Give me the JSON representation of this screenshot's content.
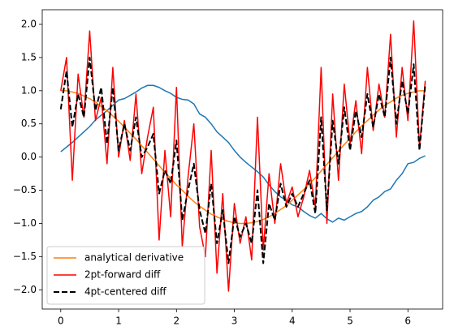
{
  "chart_data": {
    "type": "line",
    "x": [
      0,
      0.1,
      0.2,
      0.3,
      0.4,
      0.5,
      0.6,
      0.7,
      0.8,
      0.9,
      1.0,
      1.1,
      1.2,
      1.3,
      1.4,
      1.5,
      1.6,
      1.7,
      1.8,
      1.9,
      2.0,
      2.1,
      2.2,
      2.3,
      2.4,
      2.5,
      2.6,
      2.7,
      2.8,
      2.9,
      3.0,
      3.1,
      3.2,
      3.3,
      3.4,
      3.5,
      3.6,
      3.7,
      3.8,
      3.9,
      4.0,
      4.1,
      4.2,
      4.3,
      4.4,
      4.5,
      4.6,
      4.7,
      4.8,
      4.9,
      5.0,
      5.1,
      5.2,
      5.3,
      5.4,
      5.5,
      5.6,
      5.7,
      5.8,
      5.9,
      6.0,
      6.1,
      6.2,
      6.3
    ],
    "series": [
      {
        "color": "#1f77b4",
        "linestyle": "solid",
        "values": [
          0.08,
          0.15,
          0.22,
          0.3,
          0.38,
          0.46,
          0.56,
          0.63,
          0.7,
          0.78,
          0.86,
          0.88,
          0.93,
          0.98,
          1.04,
          1.08,
          1.08,
          1.05,
          1.0,
          0.96,
          0.9,
          0.87,
          0.86,
          0.8,
          0.65,
          0.6,
          0.5,
          0.38,
          0.3,
          0.22,
          0.1,
          0.0,
          -0.08,
          -0.15,
          -0.22,
          -0.3,
          -0.42,
          -0.52,
          -0.6,
          -0.65,
          -0.72,
          -0.75,
          -0.82,
          -0.88,
          -0.92,
          -0.85,
          -0.93,
          -0.98,
          -0.92,
          -0.95,
          -0.9,
          -0.85,
          -0.82,
          -0.75,
          -0.65,
          -0.6,
          -0.52,
          -0.48,
          -0.35,
          -0.25,
          -0.1,
          -0.08,
          -0.02,
          0.02
        ]
      },
      {
        "name": "analytical derivative",
        "color": "#ff7f0e",
        "linestyle": "solid",
        "values": [
          1.0,
          1.0,
          0.98,
          0.96,
          0.92,
          0.88,
          0.83,
          0.76,
          0.7,
          0.62,
          0.54,
          0.45,
          0.36,
          0.27,
          0.17,
          0.07,
          -0.03,
          -0.13,
          -0.23,
          -0.32,
          -0.42,
          -0.5,
          -0.59,
          -0.67,
          -0.74,
          -0.8,
          -0.86,
          -0.9,
          -0.94,
          -0.97,
          -0.99,
          -1.0,
          -1.0,
          -0.99,
          -0.97,
          -0.94,
          -0.9,
          -0.85,
          -0.79,
          -0.73,
          -0.65,
          -0.57,
          -0.49,
          -0.4,
          -0.31,
          -0.21,
          -0.11,
          -0.01,
          0.09,
          0.19,
          0.28,
          0.38,
          0.47,
          0.55,
          0.63,
          0.71,
          0.78,
          0.83,
          0.89,
          0.93,
          0.96,
          0.98,
          1.0,
          1.0
        ]
      },
      {
        "name": "2pt-forward diff",
        "color": "#ff0000",
        "linestyle": "solid",
        "values": [
          1.0,
          1.5,
          -0.35,
          1.25,
          0.6,
          1.9,
          0.55,
          0.9,
          -0.1,
          1.35,
          0.0,
          0.55,
          -0.05,
          0.95,
          -0.25,
          0.3,
          0.75,
          -1.25,
          0.1,
          -0.9,
          1.05,
          -1.35,
          -0.3,
          0.5,
          -1.05,
          -1.5,
          0.1,
          -1.75,
          -0.55,
          -2.02,
          -0.7,
          -1.3,
          -0.9,
          -1.55,
          0.6,
          -1.4,
          -0.25,
          -1.0,
          -0.1,
          -0.7,
          -0.45,
          -0.9,
          -0.6,
          -0.2,
          -0.75,
          1.35,
          -1.0,
          0.95,
          -0.35,
          1.1,
          0.2,
          0.85,
          0.05,
          1.35,
          0.4,
          1.1,
          0.6,
          1.85,
          0.3,
          1.35,
          0.55,
          2.05,
          0.15,
          1.15
        ]
      },
      {
        "name": "4pt-centered diff",
        "color": "#000000",
        "linestyle": "dashed",
        "values": [
          0.72,
          1.3,
          0.45,
          0.95,
          0.6,
          1.5,
          0.7,
          1.05,
          0.2,
          1.05,
          0.1,
          0.5,
          0.1,
          0.6,
          0.0,
          0.15,
          0.35,
          -0.55,
          -0.2,
          -0.4,
          0.25,
          -0.95,
          -0.5,
          -0.1,
          -0.8,
          -1.15,
          -0.4,
          -1.3,
          -0.8,
          -1.6,
          -0.9,
          -1.2,
          -1.0,
          -1.3,
          -0.5,
          -1.6,
          -0.7,
          -0.95,
          -0.4,
          -0.75,
          -0.55,
          -0.75,
          -0.55,
          -0.35,
          -0.85,
          0.6,
          -0.8,
          0.55,
          -0.1,
          0.75,
          0.1,
          0.7,
          0.3,
          0.95,
          0.45,
          0.95,
          0.6,
          1.5,
          0.5,
          1.15,
          0.65,
          1.4,
          0.1,
          1.1
        ]
      }
    ],
    "xlim": [
      -0.32,
      6.6
    ],
    "ylim": [
      -2.29,
      2.22
    ],
    "xticks": [
      0,
      1,
      2,
      3,
      4,
      5,
      6
    ],
    "yticks": [
      {
        "value": -2,
        "label": "−2.0"
      },
      {
        "value": -1.5,
        "label": "−1.5"
      },
      {
        "value": -1,
        "label": "−1.0"
      },
      {
        "value": -0.5,
        "label": "−0.5"
      },
      {
        "value": 0,
        "label": "0.0"
      },
      {
        "value": 0.5,
        "label": "0.5"
      },
      {
        "value": 1,
        "label": "1.0"
      },
      {
        "value": 1.5,
        "label": "1.5"
      },
      {
        "value": 2,
        "label": "2.0"
      }
    ],
    "grid": false,
    "legend": "lower left"
  }
}
